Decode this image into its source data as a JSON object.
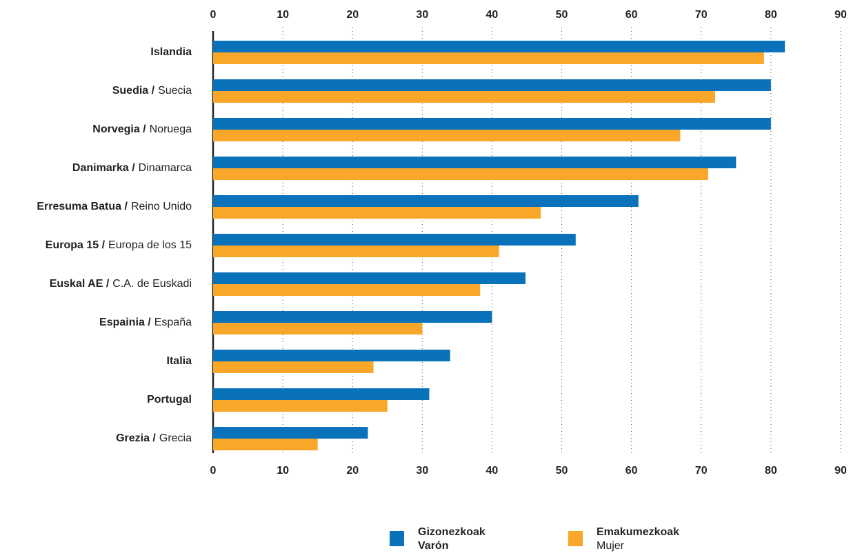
{
  "chart_data": {
    "type": "bar",
    "orientation": "horizontal",
    "categories": [
      "Islandia",
      "Suedia /",
      "Norvegia /",
      "Danimarka /",
      "Erresuma Batua /",
      "Europa 15 /",
      "Euskal AE /",
      "Espainia /",
      "Italia",
      "Portugal",
      "Grezia /"
    ],
    "category_translations": [
      null,
      "Suecia",
      "Noruega",
      "Dinamarca",
      "Reino Unido",
      "Europa de los 15",
      "C.A. de Euskadi",
      "España",
      null,
      null,
      "Grecia"
    ],
    "series": [
      {
        "name": "Gizonezkoak",
        "name_translation": "Varón",
        "color": "#0a72bb",
        "values": [
          82,
          80,
          80,
          75,
          61,
          52,
          44.8,
          40,
          34,
          31,
          22.2
        ]
      },
      {
        "name": "Emakumezkoak",
        "name_translation": "Mujer",
        "color": "#f8a72a",
        "values": [
          79,
          72,
          67,
          71,
          47,
          41,
          38.3,
          30,
          23,
          25,
          15
        ]
      }
    ],
    "xlim": [
      0,
      90
    ],
    "xticks": [
      0,
      10,
      20,
      30,
      40,
      50,
      60,
      70,
      80,
      90
    ],
    "grid": true,
    "legend": "bottom"
  }
}
